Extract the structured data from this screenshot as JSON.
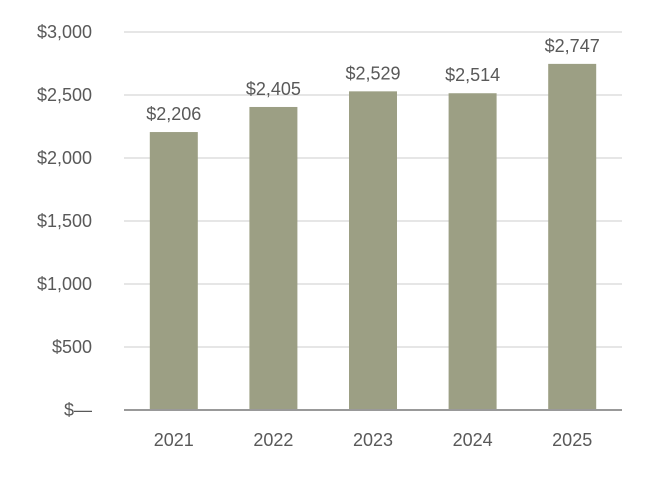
{
  "chart_data": {
    "type": "bar",
    "title": "",
    "xlabel": "",
    "ylabel": "",
    "categories": [
      "2021",
      "2022",
      "2023",
      "2024",
      "2025"
    ],
    "values": [
      2206,
      2405,
      2529,
      2514,
      2747
    ],
    "data_labels": [
      "$2,206",
      "$2,405",
      "$2,529",
      "$2,514",
      "$2,747"
    ],
    "ylim": [
      0,
      3000
    ],
    "yticks": [
      0,
      500,
      1000,
      1500,
      2000,
      2500,
      3000
    ],
    "ytick_labels": [
      "$—",
      "$500",
      "$1,000",
      "$1,500",
      "$2,000",
      "$2,500",
      "$3,000"
    ],
    "grid": true,
    "legend": "none",
    "colors": {
      "bar": "#9c9f84",
      "grid": "#e6e6e6",
      "axis": "#999999",
      "text": "#595959"
    }
  }
}
